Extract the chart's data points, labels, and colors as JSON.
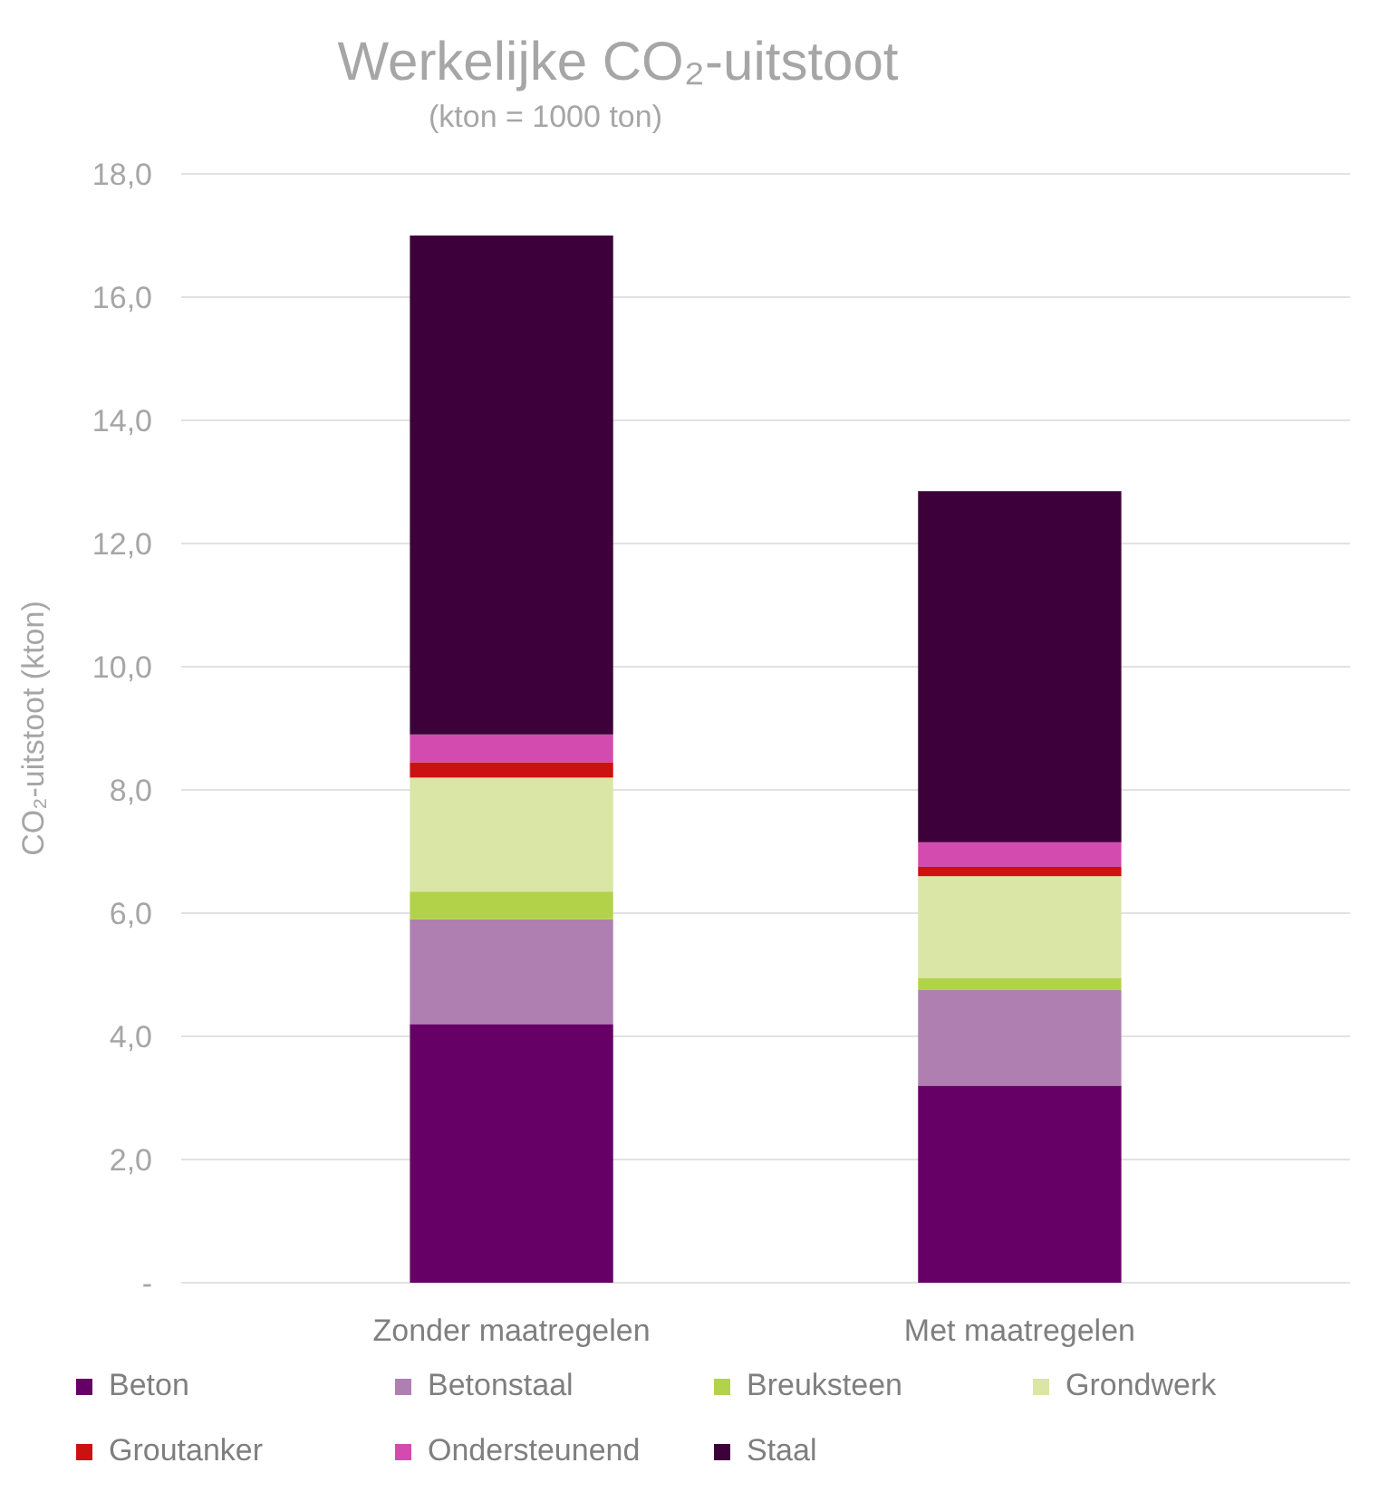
{
  "chart_data": {
    "type": "bar",
    "title": "Werkelijke CO₂-uitstoot",
    "subtitle": "(kton = 1000 ton)",
    "ylabel": "CO₂-uitstoot (kton)",
    "categories": [
      "Zonder maatregelen",
      "Met maatregelen"
    ],
    "series": [
      {
        "name": "Beton",
        "color": "#660066",
        "values": [
          4.2,
          3.2
        ]
      },
      {
        "name": "Betonstaal",
        "color": "#b07fb2",
        "values": [
          1.7,
          1.55
        ]
      },
      {
        "name": "Breuksteen",
        "color": "#b2d349",
        "values": [
          0.45,
          0.2
        ]
      },
      {
        "name": "Grondwerk",
        "color": "#d9e6a6",
        "values": [
          1.85,
          1.65
        ]
      },
      {
        "name": "Groutanker",
        "color": "#cc1111",
        "values": [
          0.25,
          0.15
        ]
      },
      {
        "name": "Ondersteunend",
        "color": "#d44bb0",
        "values": [
          0.45,
          0.4
        ]
      },
      {
        "name": "Staal",
        "color": "#3d003b",
        "values": [
          8.1,
          5.7
        ]
      }
    ],
    "stacked": true,
    "ylim": [
      0,
      18
    ],
    "yticks": [
      {
        "value": 0,
        "label": "-"
      },
      {
        "value": 2,
        "label": "2,0"
      },
      {
        "value": 4,
        "label": "4,0"
      },
      {
        "value": 6,
        "label": "6,0"
      },
      {
        "value": 8,
        "label": "8,0"
      },
      {
        "value": 10,
        "label": "10,0"
      },
      {
        "value": 12,
        "label": "12,0"
      },
      {
        "value": 14,
        "label": "14,0"
      },
      {
        "value": 16,
        "label": "16,0"
      },
      {
        "value": 18,
        "label": "18,0"
      }
    ],
    "grid": "y",
    "legend": "bottom"
  }
}
